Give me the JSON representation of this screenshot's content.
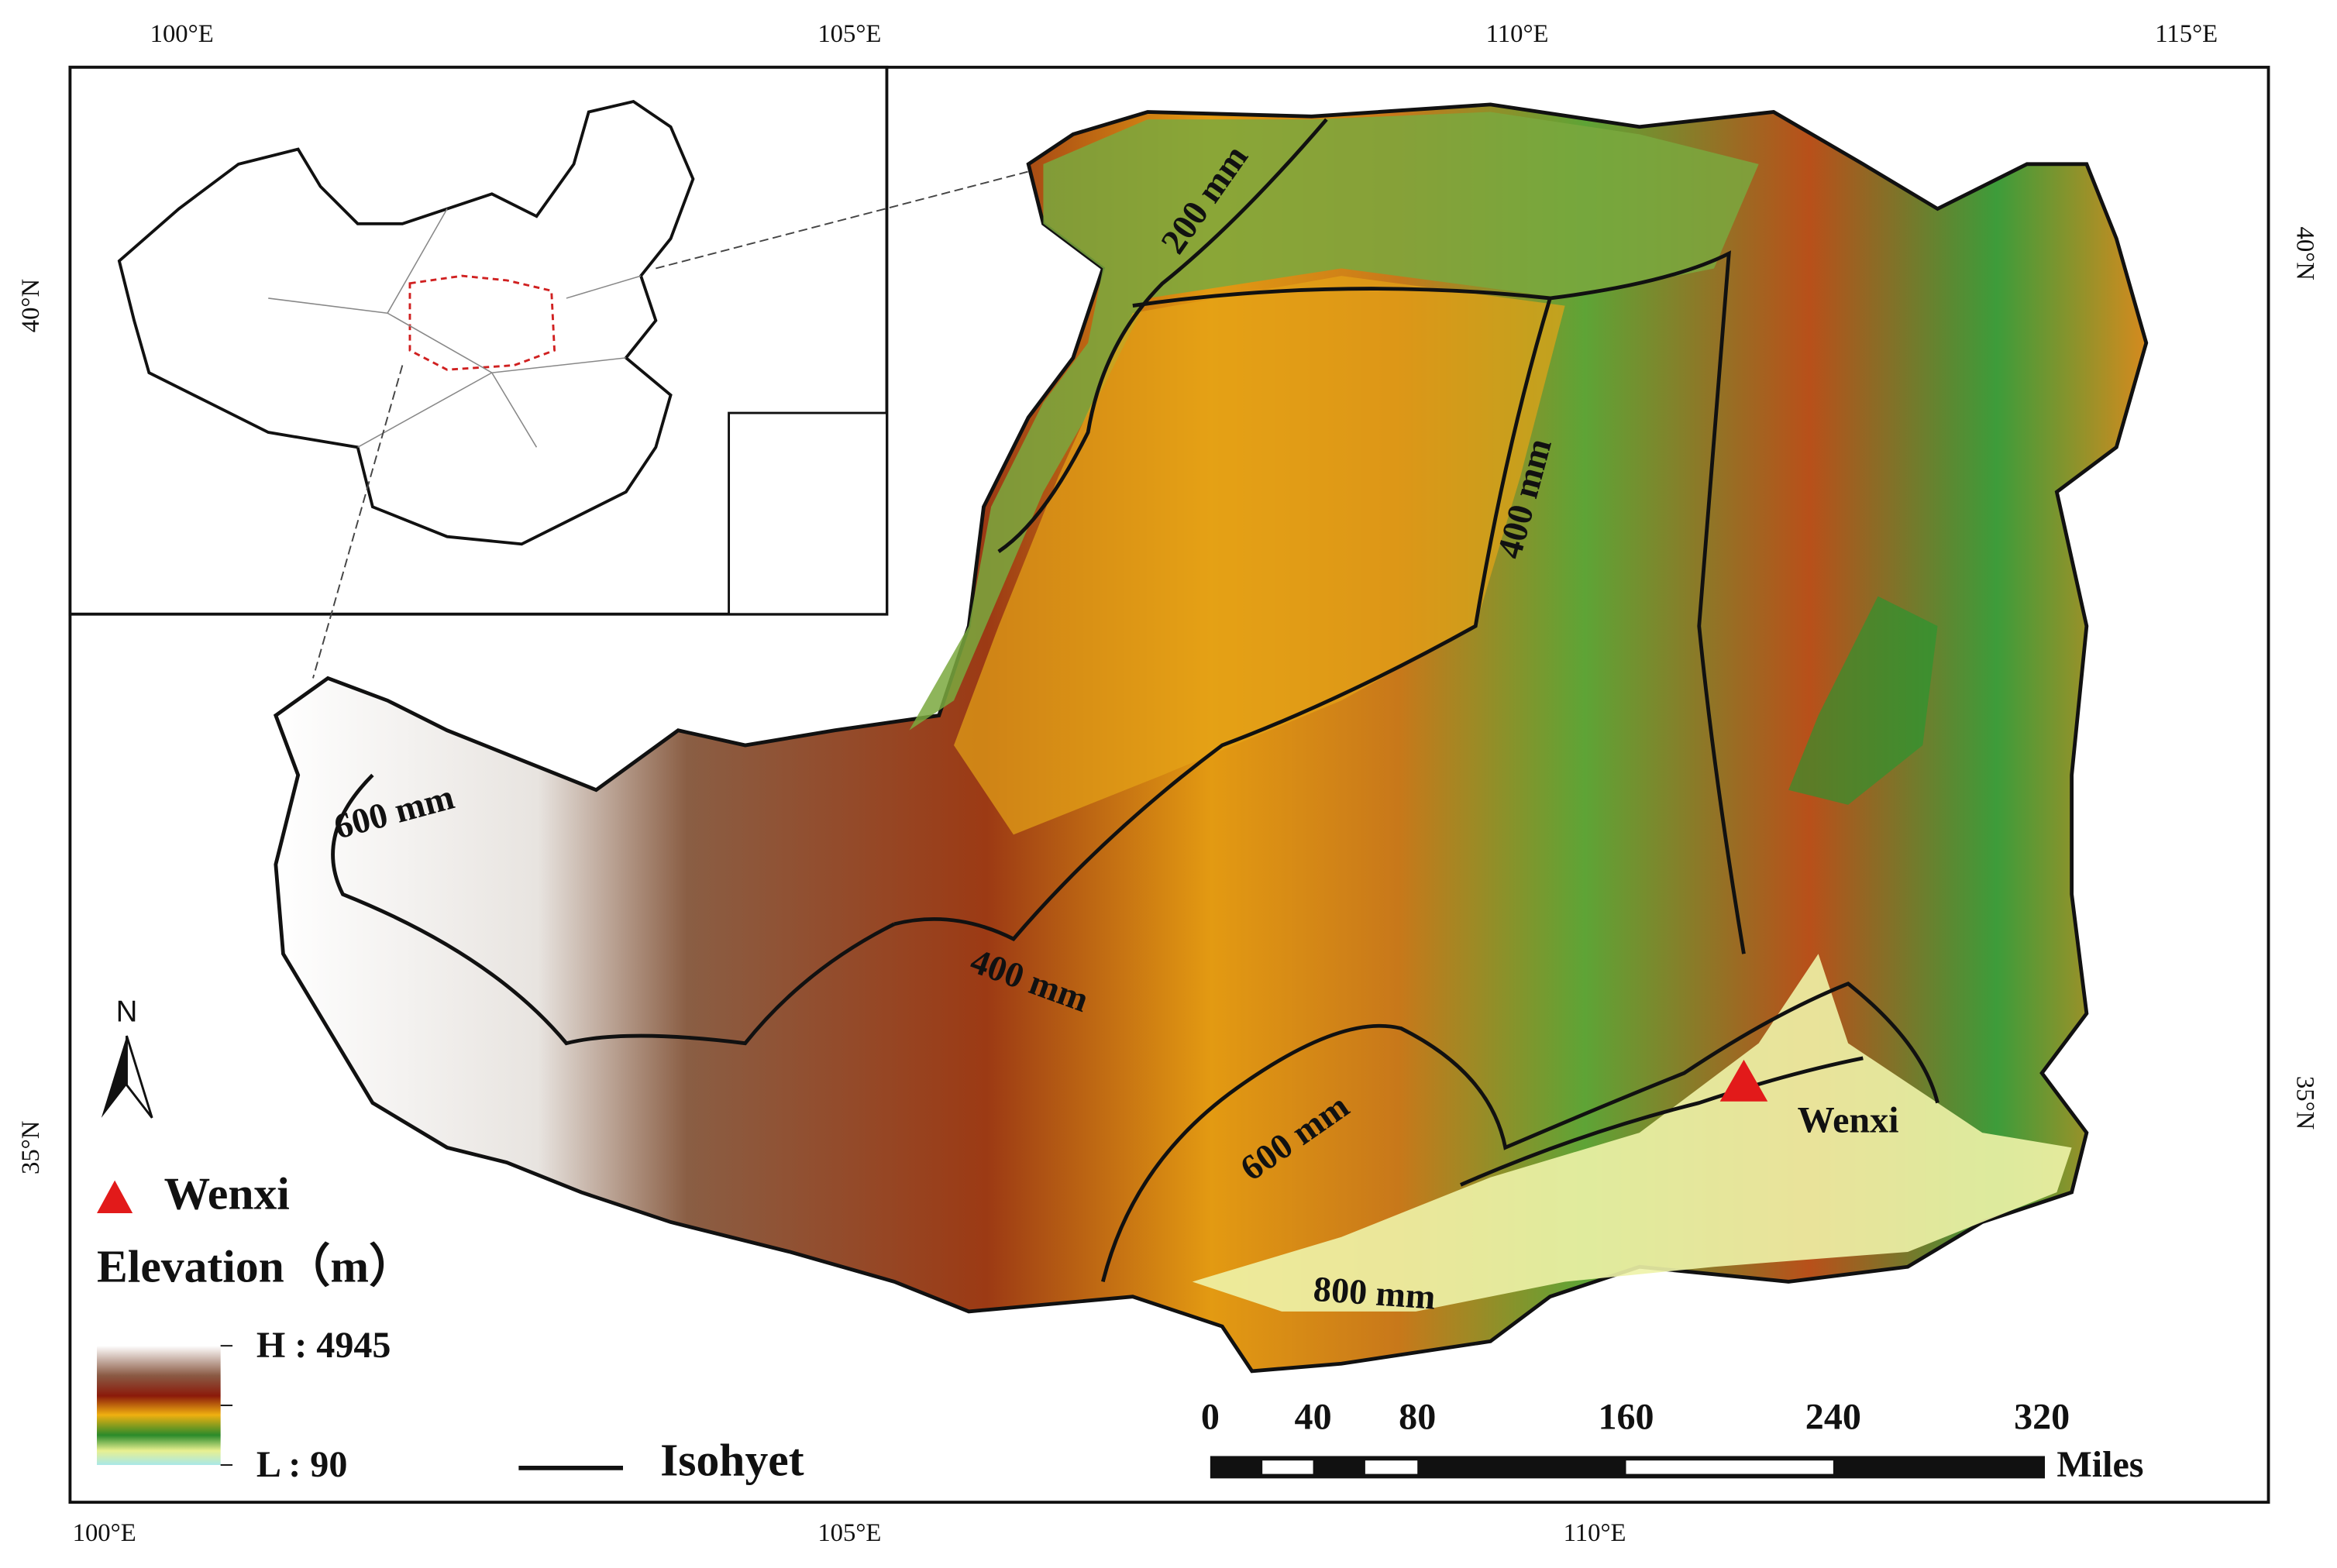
{
  "map": {
    "top_labels": [
      "100°E",
      "105°E",
      "110°E",
      "115°E"
    ],
    "bottom_labels": [
      "100°E",
      "105°E",
      "110°E"
    ],
    "left_labels": [
      "40°N",
      "35°N"
    ],
    "right_labels": [
      "40°N",
      "35°N"
    ],
    "isohyets": [
      "200 mm",
      "400 mm",
      "400 mm",
      "600 mm",
      "600 mm",
      "800 mm"
    ],
    "site": "Wenxi",
    "north": "N"
  },
  "legend": {
    "site": "Wenxi",
    "elevation_title": "Elevation（m）",
    "high": "H : 4945",
    "low": "L : 90",
    "isohyet": "Isohyet"
  },
  "scale_bar": {
    "ticks": [
      "0",
      "40",
      "80",
      "160",
      "240",
      "320"
    ],
    "unit": "Miles"
  }
}
